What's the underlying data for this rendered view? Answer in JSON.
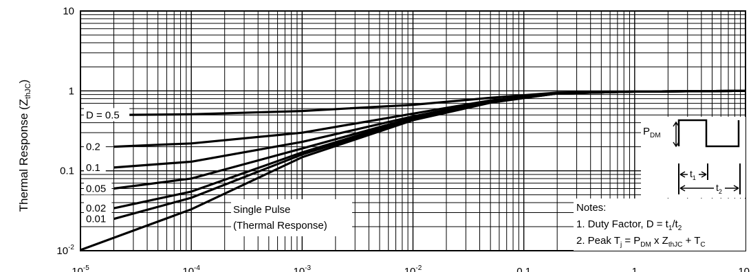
{
  "chart_data": {
    "type": "line",
    "title": "",
    "xlabel": "",
    "ylabel": "Thermal Response (Z",
    "ylabel_sub": "thJC",
    "ylabel_close": ")",
    "x_scale": "log",
    "y_scale": "log",
    "xlim": [
      1e-05,
      10
    ],
    "ylim": [
      0.01,
      10
    ],
    "grid": true,
    "x_ticks": [
      {
        "value": 1e-05,
        "base": "10",
        "exp": "-5"
      },
      {
        "value": 0.0001,
        "base": "10",
        "exp": "-4"
      },
      {
        "value": 0.001,
        "base": "10",
        "exp": "-3"
      },
      {
        "value": 0.01,
        "base": "10",
        "exp": "-2"
      },
      {
        "value": 0.1,
        "base": "0.1",
        "exp": ""
      },
      {
        "value": 1,
        "base": "1",
        "exp": ""
      },
      {
        "value": 10,
        "base": "10",
        "exp": ""
      }
    ],
    "y_ticks": [
      {
        "value": 10,
        "base": "10",
        "exp": ""
      },
      {
        "value": 1,
        "base": "1",
        "exp": ""
      },
      {
        "value": 0.1,
        "base": "0.1",
        "exp": ""
      },
      {
        "value": 0.01,
        "base": "10",
        "exp": "-2"
      }
    ],
    "series": [
      {
        "label": "D = 0.5",
        "points": [
          [
            2e-05,
            0.5
          ],
          [
            0.0001,
            0.51
          ],
          [
            0.001,
            0.56
          ],
          [
            0.01,
            0.67
          ],
          [
            0.05,
            0.82
          ],
          [
            0.2,
            0.95
          ],
          [
            1,
            0.98
          ],
          [
            10,
            1.0
          ]
        ]
      },
      {
        "label": "0.2",
        "points": [
          [
            2e-05,
            0.2
          ],
          [
            0.0001,
            0.22
          ],
          [
            0.001,
            0.3
          ],
          [
            0.01,
            0.52
          ],
          [
            0.05,
            0.76
          ],
          [
            0.2,
            0.94
          ],
          [
            1,
            0.98
          ],
          [
            10,
            1.0
          ]
        ]
      },
      {
        "label": "0.1",
        "points": [
          [
            2e-05,
            0.11
          ],
          [
            0.0001,
            0.13
          ],
          [
            0.001,
            0.23
          ],
          [
            0.01,
            0.48
          ],
          [
            0.05,
            0.74
          ],
          [
            0.2,
            0.93
          ],
          [
            1,
            0.98
          ],
          [
            10,
            1.0
          ]
        ]
      },
      {
        "label": "0.05",
        "points": [
          [
            2e-05,
            0.06
          ],
          [
            0.0001,
            0.08
          ],
          [
            0.001,
            0.19
          ],
          [
            0.01,
            0.46
          ],
          [
            0.05,
            0.73
          ],
          [
            0.2,
            0.93
          ],
          [
            1,
            0.98
          ],
          [
            10,
            1.0
          ]
        ]
      },
      {
        "label": "0.02",
        "points": [
          [
            2e-05,
            0.034
          ],
          [
            0.0001,
            0.055
          ],
          [
            0.001,
            0.17
          ],
          [
            0.01,
            0.45
          ],
          [
            0.05,
            0.72
          ],
          [
            0.2,
            0.93
          ],
          [
            1,
            0.98
          ],
          [
            10,
            1.0
          ]
        ]
      },
      {
        "label": "0.01",
        "points": [
          [
            2e-05,
            0.025
          ],
          [
            0.0001,
            0.046
          ],
          [
            0.001,
            0.16
          ],
          [
            0.01,
            0.44
          ],
          [
            0.05,
            0.72
          ],
          [
            0.2,
            0.93
          ],
          [
            1,
            0.98
          ],
          [
            10,
            1.0
          ]
        ]
      },
      {
        "label": "",
        "points": [
          [
            1e-05,
            0.0102
          ],
          [
            0.0001,
            0.033
          ],
          [
            0.001,
            0.148
          ],
          [
            0.01,
            0.43
          ],
          [
            0.05,
            0.71
          ],
          [
            0.2,
            0.93
          ],
          [
            1,
            0.98
          ],
          [
            10,
            1.0
          ]
        ]
      }
    ],
    "annotations": {
      "single_pulse": [
        "Single Pulse",
        "(Thermal Response)"
      ],
      "pdm": {
        "main": "P",
        "sub": "DM"
      },
      "t1": {
        "main": "t",
        "sub": "1"
      },
      "t2": {
        "main": "t",
        "sub": "2"
      },
      "notes_title": "Notes:",
      "note1": {
        "prefix": "1.  Duty Factor, D = t",
        "s1": "1",
        "mid": "/t",
        "s2": "2"
      },
      "note2": {
        "prefix": "2.  Peak T",
        "s1": "j",
        "m1": " = P",
        "s2": "DM",
        "m2": " x Z",
        "s3": "thJC",
        "m3": " + T",
        "s4": "C"
      }
    }
  }
}
